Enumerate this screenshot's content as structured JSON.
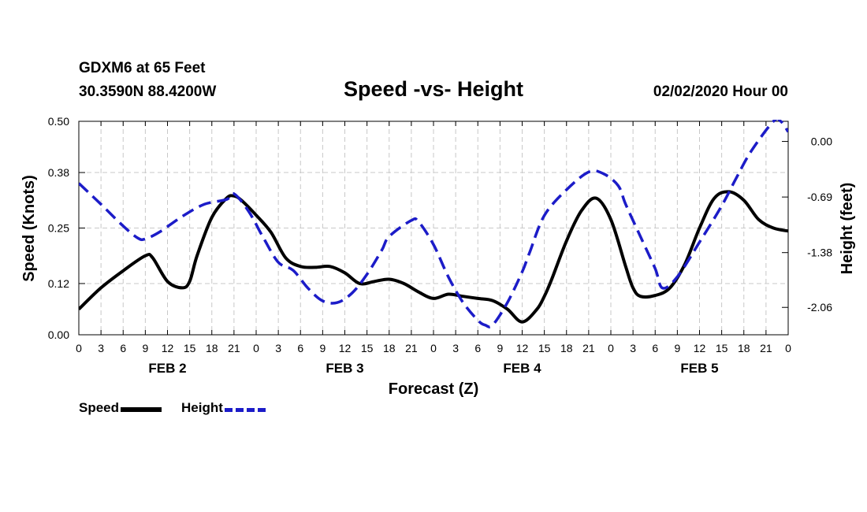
{
  "header": {
    "station": "GDXM6 at 65 Feet",
    "coords": "30.3590N 88.4200W",
    "title": "Speed -vs- Height",
    "datetime": "02/02/2020 Hour 00"
  },
  "legend": {
    "speed_label": "Speed",
    "height_label": "Height"
  },
  "colors": {
    "speed": "#000000",
    "height": "#1c1cc8",
    "grid": "#c8c8c8"
  },
  "chart_data": {
    "type": "line",
    "title": "Speed -vs- Height",
    "xlabel": "Forecast (Z)",
    "ylabel": "Speed (Knots)",
    "y2label": "Height (feet)",
    "xlim": [
      0,
      96
    ],
    "ylim": [
      0,
      0.5
    ],
    "y2lim": [
      -2.4,
      0.25
    ],
    "yticks": [
      "0.00",
      "0.12",
      "0.25",
      "0.38",
      "0.50"
    ],
    "y2ticks": [
      "0.00",
      "-0.69",
      "-1.38",
      "-2.06"
    ],
    "xtick_labels": [
      "0",
      "3",
      "6",
      "9",
      "12",
      "15",
      "18",
      "21",
      "0",
      "3",
      "6",
      "9",
      "12",
      "15",
      "18",
      "21",
      "0",
      "3",
      "6",
      "9",
      "12",
      "15",
      "18",
      "21",
      "0",
      "3",
      "6",
      "9",
      "12",
      "15",
      "18",
      "21",
      "0"
    ],
    "day_labels": [
      "FEB 2",
      "FEB 3",
      "FEB 4",
      "FEB 5"
    ],
    "series": [
      {
        "name": "Speed",
        "axis": "left",
        "x": [
          0,
          3,
          6,
          9,
          10,
          12,
          14,
          15,
          16,
          18,
          20,
          21,
          22,
          24,
          26,
          28,
          30,
          32,
          34,
          36,
          38,
          40,
          42,
          44,
          46,
          48,
          50,
          52,
          54,
          56,
          58,
          60,
          62,
          63,
          64,
          66,
          68,
          70,
          72,
          74,
          75,
          76,
          78,
          80,
          82,
          84,
          86,
          88,
          90,
          92,
          94,
          96
        ],
        "y": [
          0.06,
          0.11,
          0.15,
          0.185,
          0.18,
          0.125,
          0.11,
          0.125,
          0.185,
          0.275,
          0.32,
          0.325,
          0.315,
          0.28,
          0.24,
          0.18,
          0.16,
          0.158,
          0.16,
          0.145,
          0.12,
          0.125,
          0.13,
          0.12,
          0.1,
          0.085,
          0.095,
          0.09,
          0.085,
          0.08,
          0.06,
          0.03,
          0.06,
          0.09,
          0.13,
          0.22,
          0.29,
          0.32,
          0.27,
          0.16,
          0.11,
          0.09,
          0.092,
          0.11,
          0.165,
          0.25,
          0.32,
          0.335,
          0.315,
          0.27,
          0.25,
          0.243
        ]
      },
      {
        "name": "Height",
        "axis": "right",
        "x": [
          0,
          3,
          6,
          8,
          9,
          11,
          14,
          17,
          20,
          21,
          23,
          25,
          27,
          29,
          31,
          33,
          35,
          37,
          39,
          41,
          42,
          45,
          46,
          48,
          50,
          52,
          54,
          55,
          56,
          58,
          60,
          61,
          63,
          66,
          69,
          71,
          73,
          74,
          76,
          78,
          79,
          81,
          84,
          87,
          89,
          91,
          94,
          95,
          96
        ],
        "y": [
          -0.52,
          -0.78,
          -1.05,
          -1.2,
          -1.21,
          -1.12,
          -0.93,
          -0.78,
          -0.72,
          -0.65,
          -0.87,
          -1.2,
          -1.5,
          -1.6,
          -1.82,
          -1.98,
          -2.0,
          -1.88,
          -1.65,
          -1.35,
          -1.18,
          -0.98,
          -1.0,
          -1.28,
          -1.68,
          -2.0,
          -2.22,
          -2.28,
          -2.28,
          -2.0,
          -1.62,
          -1.38,
          -0.92,
          -0.6,
          -0.38,
          -0.4,
          -0.55,
          -0.78,
          -1.18,
          -1.58,
          -1.82,
          -1.68,
          -1.25,
          -0.8,
          -0.45,
          -0.12,
          0.25,
          0.25,
          0.12
        ]
      }
    ]
  }
}
